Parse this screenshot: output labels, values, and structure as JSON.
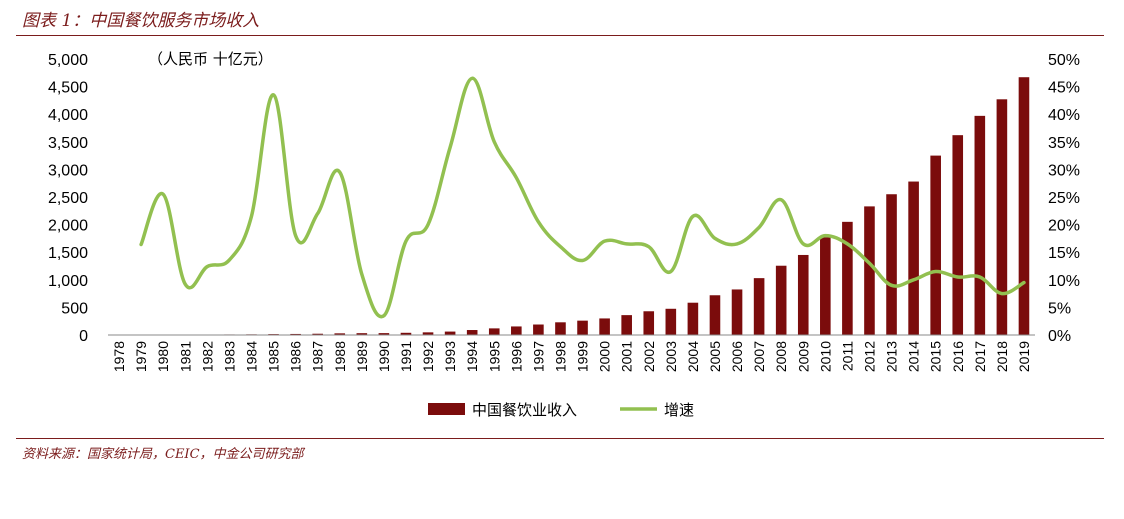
{
  "header": {
    "title": "图表 1：中国餐饮服务市场收入"
  },
  "footer": {
    "source": "资料来源：国家统计局，CEIC，中金公司研究部"
  },
  "chart_data": {
    "type": "bar",
    "unit_label": "（人民币 十亿元）",
    "categories": [
      "1978",
      "1979",
      "1980",
      "1981",
      "1982",
      "1983",
      "1984",
      "1985",
      "1986",
      "1987",
      "1988",
      "1989",
      "1990",
      "1991",
      "1992",
      "1993",
      "1994",
      "1995",
      "1996",
      "1997",
      "1998",
      "1999",
      "2000",
      "2001",
      "2002",
      "2003",
      "2004",
      "2005",
      "2006",
      "2007",
      "2008",
      "2009",
      "2010",
      "2011",
      "2012",
      "2013",
      "2014",
      "2015",
      "2016",
      "2017",
      "2018",
      "2019"
    ],
    "y_left": {
      "ticks": [
        "0",
        "500",
        "1,000",
        "1,500",
        "2,000",
        "2,500",
        "3,000",
        "3,500",
        "4,000",
        "4,500",
        "5,000"
      ],
      "min": 0,
      "max": 5000
    },
    "y_right": {
      "ticks": [
        "0%",
        "5%",
        "10%",
        "15%",
        "20%",
        "25%",
        "30%",
        "35%",
        "40%",
        "45%",
        "50%"
      ],
      "min": 0,
      "max": 50
    },
    "series": [
      {
        "name": "中国餐饮业收入",
        "type": "bar",
        "axis": "left",
        "color": "#7b0c0c",
        "values": [
          5,
          6,
          7,
          8,
          9,
          10,
          12,
          16,
          19,
          23,
          30,
          33,
          34,
          40,
          48,
          62,
          90,
          120,
          155,
          190,
          230,
          260,
          300,
          360,
          430,
          475,
          585,
          720,
          825,
          1030,
          1255,
          1450,
          1770,
          2050,
          2330,
          2550,
          2780,
          3250,
          3620,
          3970,
          4270,
          4670
        ]
      },
      {
        "name": "增速",
        "type": "line",
        "axis": "right",
        "color": "#92c050",
        "values": [
          null,
          16.4,
          25.5,
          9.2,
          12.4,
          13.6,
          21.5,
          43.5,
          18.0,
          22.0,
          29.5,
          11.0,
          3.5,
          17.0,
          20.0,
          34.0,
          46.5,
          35.0,
          28.5,
          20.5,
          16.0,
          13.5,
          17.0,
          16.5,
          16.0,
          11.5,
          21.5,
          17.5,
          16.5,
          19.5,
          24.5,
          16.5,
          18.0,
          16.5,
          13.0,
          9.0,
          10.0,
          11.5,
          10.5,
          10.5,
          7.5,
          9.5
        ]
      }
    ],
    "legend": "bottom-center",
    "grid": false
  }
}
